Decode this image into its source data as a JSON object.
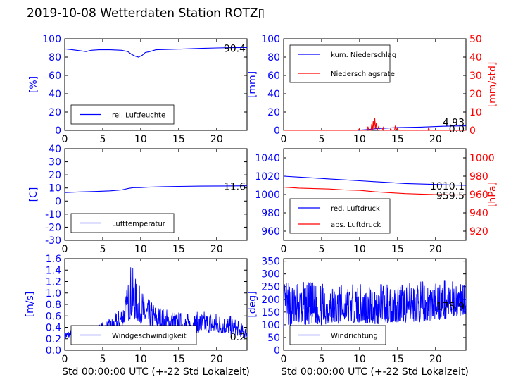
{
  "title": "2019-10-08 Wetterdaten Station ROTZ▯",
  "colors": {
    "blue": "#0000ff",
    "red": "#ff0000",
    "axis": "#000000"
  },
  "chart_data": [
    {
      "id": "humidity",
      "type": "line",
      "ylabel": "[%]",
      "ylim": [
        0,
        100
      ],
      "yticks": [
        0,
        20,
        40,
        60,
        80,
        100
      ],
      "xlim": [
        0,
        24
      ],
      "xticks": [
        0,
        5,
        10,
        15,
        20
      ],
      "xlabel": "",
      "legend_position": "lower-left",
      "series": [
        {
          "name": "rel. Luftfeuchte",
          "color": "#0000ff",
          "points": [
            [
              0,
              89
            ],
            [
              1,
              88
            ],
            [
              2,
              87
            ],
            [
              2.8,
              86
            ],
            [
              3.5,
              87.5
            ],
            [
              4.5,
              88
            ],
            [
              6,
              88
            ],
            [
              7.5,
              87.5
            ],
            [
              8.3,
              86
            ],
            [
              8.8,
              83
            ],
            [
              9.3,
              81
            ],
            [
              9.7,
              80
            ],
            [
              10.2,
              82
            ],
            [
              10.6,
              85
            ],
            [
              11.2,
              86
            ],
            [
              12,
              88
            ],
            [
              14,
              88.5
            ],
            [
              16,
              89
            ],
            [
              18,
              89.5
            ],
            [
              20,
              90
            ],
            [
              22,
              90.3
            ],
            [
              24,
              90.4
            ]
          ]
        }
      ],
      "last_value": "90.4"
    },
    {
      "id": "precipitation",
      "type": "line",
      "ylabel": "[mm]",
      "ylim": [
        0,
        100
      ],
      "yticks": [
        0,
        20,
        40,
        60,
        80,
        100
      ],
      "y2label": "[mm/std]",
      "y2lim": [
        0,
        50
      ],
      "y2ticks": [
        0,
        10,
        20,
        30,
        40,
        50
      ],
      "xlim": [
        0,
        24
      ],
      "xticks": [
        0,
        5,
        10,
        15,
        20
      ],
      "xlabel": "",
      "legend_position": "upper-left",
      "series": [
        {
          "name": "kum. Niederschlag",
          "color": "#0000ff",
          "axis": "left",
          "points": [
            [
              0,
              0
            ],
            [
              10,
              0.2
            ],
            [
              11.3,
              1
            ],
            [
              12.3,
              2
            ],
            [
              15,
              3
            ],
            [
              18,
              3.5
            ],
            [
              21,
              4.5
            ],
            [
              24,
              4.9
            ]
          ]
        },
        {
          "name": "Niederschlagsrate",
          "color": "#ff0000",
          "axis": "right",
          "points": [
            [
              0,
              0
            ],
            [
              9.8,
              0
            ],
            [
              10,
              1
            ],
            [
              10.1,
              0
            ],
            [
              11,
              0
            ],
            [
              11.1,
              2
            ],
            [
              11.2,
              0
            ],
            [
              11.5,
              0
            ],
            [
              11.6,
              3.5
            ],
            [
              11.7,
              0
            ],
            [
              11.8,
              5
            ],
            [
              11.9,
              0.5
            ],
            [
              12,
              6.5
            ],
            [
              12.1,
              1
            ],
            [
              12.2,
              4
            ],
            [
              12.3,
              0
            ],
            [
              12.5,
              2
            ],
            [
              12.6,
              0
            ],
            [
              13,
              0
            ],
            [
              13.1,
              1.5
            ],
            [
              13.2,
              0
            ],
            [
              14,
              0
            ],
            [
              14.1,
              1
            ],
            [
              14.2,
              0
            ],
            [
              14.6,
              0
            ],
            [
              14.7,
              2.5
            ],
            [
              14.8,
              0
            ],
            [
              15,
              1.5
            ],
            [
              15.1,
              0
            ],
            [
              19,
              0
            ],
            [
              19.1,
              1.5
            ],
            [
              19.2,
              0
            ],
            [
              24,
              0
            ]
          ]
        }
      ],
      "last_values": [
        "4.93",
        "0.0"
      ]
    },
    {
      "id": "temperature",
      "type": "line",
      "ylabel": "[C]",
      "ylim": [
        -30,
        40
      ],
      "yticks": [
        -30,
        -20,
        -10,
        0,
        10,
        20,
        30,
        40
      ],
      "xlim": [
        0,
        24
      ],
      "xticks": [
        0,
        5,
        10,
        15,
        20
      ],
      "xlabel": "",
      "legend_position": "lower-left",
      "series": [
        {
          "name": "Lufttemperatur",
          "color": "#0000ff",
          "points": [
            [
              0,
              6.5
            ],
            [
              2,
              7
            ],
            [
              4,
              7.3
            ],
            [
              6,
              7.8
            ],
            [
              7.5,
              8.5
            ],
            [
              8.3,
              9.5
            ],
            [
              9,
              10.2
            ],
            [
              10,
              10.3
            ],
            [
              11,
              10.6
            ],
            [
              13,
              11
            ],
            [
              15,
              11.2
            ],
            [
              18,
              11.4
            ],
            [
              21,
              11.5
            ],
            [
              24,
              11.6
            ]
          ]
        }
      ],
      "last_value": "11.6"
    },
    {
      "id": "pressure",
      "type": "line",
      "ylim": [
        950,
        1050
      ],
      "yticks": [
        960,
        980,
        1000,
        1020,
        1040
      ],
      "y2label": "[hPa]",
      "y2lim": [
        910,
        1010
      ],
      "y2ticks": [
        920,
        940,
        960,
        980,
        1000
      ],
      "xlim": [
        0,
        24
      ],
      "xticks": [
        0,
        5,
        10,
        15,
        20
      ],
      "xlabel": "",
      "legend_position": "lower-left",
      "series": [
        {
          "name": "red. Luftdruck",
          "color": "#0000ff",
          "axis": "left",
          "points": [
            [
              0,
              1020
            ],
            [
              2,
              1019
            ],
            [
              4,
              1018
            ],
            [
              6,
              1017
            ],
            [
              8,
              1016
            ],
            [
              10,
              1015
            ],
            [
              12,
              1014
            ],
            [
              14,
              1013
            ],
            [
              16,
              1012
            ],
            [
              18,
              1011.5
            ],
            [
              20,
              1011
            ],
            [
              22,
              1010.5
            ],
            [
              24,
              1010.1
            ]
          ]
        },
        {
          "name": "abs. Luftdruck",
          "color": "#ff0000",
          "axis": "right",
          "points": [
            [
              0,
              968
            ],
            [
              2,
              967
            ],
            [
              4,
              966.5
            ],
            [
              6,
              966
            ],
            [
              8,
              965
            ],
            [
              10,
              964.5
            ],
            [
              12,
              963
            ],
            [
              14,
              962
            ],
            [
              16,
              961
            ],
            [
              18,
              960.5
            ],
            [
              20,
              960
            ],
            [
              22,
              959.7
            ],
            [
              24,
              959.5
            ]
          ]
        }
      ],
      "last_values": [
        "1010.1",
        "959.5"
      ]
    },
    {
      "id": "windspeed",
      "type": "line",
      "ylabel": "[m/s]",
      "ylim": [
        0,
        1.6
      ],
      "yticks": [
        0.0,
        0.2,
        0.4,
        0.6,
        0.8,
        1.0,
        1.2,
        1.4,
        1.6
      ],
      "xlim": [
        0,
        24
      ],
      "xticks": [
        0,
        5,
        10,
        15,
        20,
        25
      ],
      "xticklabels": [
        "0",
        "5",
        "10",
        "15",
        "20"
      ],
      "xlabel": "Std 00:00:00 UTC (+-22 Std Lokalzeit)",
      "legend_position": "lower-center",
      "noise": {
        "count": 600,
        "seed": 7
      },
      "envelope": [
        [
          0,
          0.2,
          0.35
        ],
        [
          4,
          0.25,
          0.45
        ],
        [
          6,
          0.3,
          0.55
        ],
        [
          7,
          0.35,
          0.7
        ],
        [
          8,
          0.45,
          0.95
        ],
        [
          8.7,
          0.55,
          1.55
        ],
        [
          9.5,
          0.5,
          1.2
        ],
        [
          11,
          0.4,
          0.9
        ],
        [
          13,
          0.35,
          0.75
        ],
        [
          16,
          0.3,
          0.65
        ],
        [
          19,
          0.3,
          0.7
        ],
        [
          22,
          0.28,
          0.6
        ],
        [
          24,
          0.2,
          0.4
        ]
      ],
      "series": [
        {
          "name": "Windgeschwindigkeit",
          "color": "#0000ff"
        }
      ],
      "last_value": "0.2"
    },
    {
      "id": "winddirection",
      "type": "line",
      "ylabel": "[deg]",
      "ylim": [
        0,
        360
      ],
      "yticks": [
        0,
        50,
        100,
        150,
        200,
        250,
        300,
        350
      ],
      "xlim": [
        0,
        24
      ],
      "xticks": [
        0,
        5,
        10,
        15,
        20
      ],
      "xlabel": "Std 00:00:00 UTC (+-22 Std Lokalzeit)",
      "legend_position": "lower-left",
      "noise": {
        "count": 650,
        "seed": 13
      },
      "envelope": [
        [
          0,
          90,
          270
        ],
        [
          3,
          100,
          270
        ],
        [
          6,
          100,
          260
        ],
        [
          9,
          110,
          260
        ],
        [
          12,
          100,
          260
        ],
        [
          15,
          110,
          270
        ],
        [
          18,
          110,
          270
        ],
        [
          21,
          120,
          280
        ],
        [
          24,
          140,
          260
        ]
      ],
      "series": [
        {
          "name": "Windrichtung",
          "color": "#0000ff"
        }
      ],
      "last_value": "175.9"
    }
  ]
}
